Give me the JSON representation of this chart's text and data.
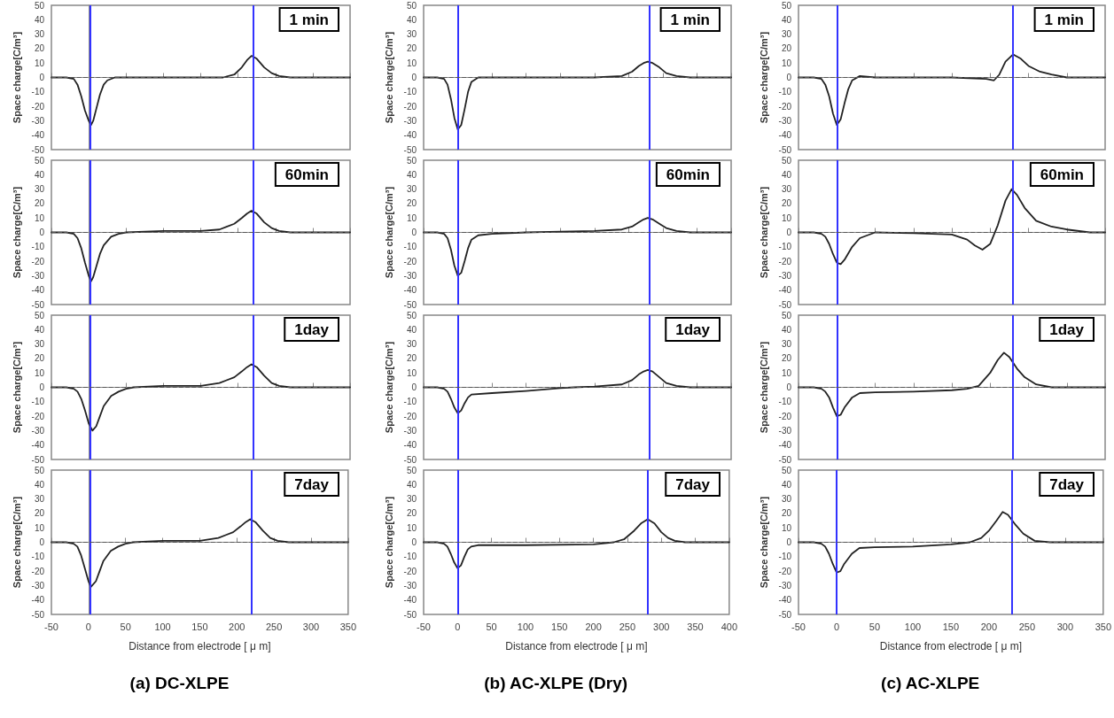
{
  "chart_data": [
    {
      "type": "line",
      "ylabel": "Space charge[C/m³]",
      "annotations": [
        "1 min"
      ],
      "xlim": [
        -50,
        350
      ],
      "xticks": [
        -50,
        0,
        50,
        100,
        150,
        200,
        250,
        300,
        350
      ],
      "ylim": [
        -50,
        50
      ],
      "yticks": [
        -50,
        -40,
        -30,
        -20,
        -10,
        0,
        10,
        20,
        30,
        40,
        50
      ],
      "tick_labels": "y",
      "marker": "none",
      "line_style": "solid",
      "x": [
        -50,
        -30,
        -20,
        -15,
        -10,
        -5,
        0,
        3,
        6,
        10,
        15,
        20,
        25,
        35,
        100,
        180,
        195,
        205,
        212,
        218,
        225,
        235,
        245,
        255,
        270,
        350
      ],
      "series": [
        {
          "color": "#222222",
          "values": [
            0,
            0,
            -1,
            -5,
            -13,
            -23,
            -30,
            -33,
            -30,
            -22,
            -12,
            -5,
            -2,
            0,
            0,
            0,
            2,
            7,
            12,
            15,
            13,
            7,
            3,
            1,
            0,
            0
          ]
        }
      ],
      "ref_lines": [
        {
          "axis": "x",
          "value": 2,
          "color": "#3333ff"
        },
        {
          "axis": "x",
          "value": 220,
          "color": "#3333ff"
        },
        {
          "axis": "y",
          "value": 0,
          "color": "#555555",
          "line_style": "dashed"
        }
      ]
    },
    {
      "type": "line",
      "ylabel": "Space charge[C/m³]",
      "annotations": [
        "1 min"
      ],
      "xlim": [
        -50,
        400
      ],
      "xticks": [
        -50,
        0,
        50,
        100,
        150,
        200,
        250,
        300,
        350,
        400
      ],
      "ylim": [
        -50,
        50
      ],
      "yticks": [
        -50,
        -40,
        -30,
        -20,
        -10,
        0,
        10,
        20,
        30,
        40,
        50
      ],
      "tick_labels": "y",
      "marker": "none",
      "line_style": "solid",
      "x": [
        -50,
        -30,
        -20,
        -15,
        -10,
        -5,
        0,
        5,
        10,
        15,
        20,
        30,
        100,
        200,
        240,
        255,
        265,
        272,
        278,
        285,
        295,
        305,
        320,
        340,
        400
      ],
      "series": [
        {
          "color": "#222222",
          "values": [
            0,
            0,
            -1,
            -5,
            -15,
            -28,
            -36,
            -33,
            -22,
            -10,
            -3,
            0,
            0,
            0,
            1,
            4,
            8,
            10,
            11,
            10,
            7,
            3,
            1,
            0,
            0
          ]
        }
      ],
      "ref_lines": [
        {
          "axis": "x",
          "value": 0,
          "color": "#3333ff"
        },
        {
          "axis": "x",
          "value": 280,
          "color": "#3333ff"
        },
        {
          "axis": "y",
          "value": 0,
          "color": "#555555",
          "line_style": "dashed"
        }
      ]
    },
    {
      "type": "line",
      "ylabel": "Space charge[C/m³]",
      "annotations": [
        "1 min"
      ],
      "xlim": [
        -50,
        350
      ],
      "xticks": [
        -50,
        0,
        50,
        100,
        150,
        200,
        250,
        300,
        350
      ],
      "ylim": [
        -50,
        50
      ],
      "yticks": [
        -50,
        -40,
        -30,
        -20,
        -10,
        0,
        10,
        20,
        30,
        40,
        50
      ],
      "tick_labels": "y",
      "marker": "none",
      "line_style": "solid",
      "x": [
        -50,
        -30,
        -20,
        -15,
        -10,
        -5,
        0,
        5,
        10,
        15,
        20,
        30,
        50,
        100,
        150,
        195,
        205,
        212,
        220,
        230,
        240,
        250,
        265,
        280,
        300,
        350
      ],
      "series": [
        {
          "color": "#222222",
          "values": [
            0,
            0,
            -1,
            -5,
            -13,
            -25,
            -33,
            -29,
            -18,
            -8,
            -2,
            1,
            0,
            0,
            0,
            -1,
            -2,
            2,
            11,
            16,
            13,
            8,
            4,
            2,
            0,
            0
          ]
        }
      ],
      "ref_lines": [
        {
          "axis": "x",
          "value": 0,
          "color": "#3333ff"
        },
        {
          "axis": "x",
          "value": 230,
          "color": "#3333ff"
        },
        {
          "axis": "y",
          "value": 0,
          "color": "#555555",
          "line_style": "dashed"
        }
      ]
    },
    {
      "type": "line",
      "ylabel": "Space charge[C/m³]",
      "annotations": [
        "60min"
      ],
      "xlim": [
        -50,
        350
      ],
      "xticks": [
        -50,
        0,
        50,
        100,
        150,
        200,
        250,
        300,
        350
      ],
      "ylim": [
        -50,
        50
      ],
      "yticks": [
        -50,
        -40,
        -30,
        -20,
        -10,
        0,
        10,
        20,
        30,
        40,
        50
      ],
      "tick_labels": "y",
      "marker": "none",
      "line_style": "solid",
      "x": [
        -50,
        -30,
        -20,
        -15,
        -10,
        -5,
        0,
        3,
        6,
        10,
        15,
        20,
        30,
        40,
        50,
        100,
        150,
        175,
        195,
        205,
        212,
        218,
        225,
        235,
        245,
        255,
        270,
        350
      ],
      "series": [
        {
          "color": "#222222",
          "values": [
            0,
            0,
            -1,
            -4,
            -11,
            -21,
            -30,
            -34,
            -31,
            -24,
            -15,
            -9,
            -3,
            -1,
            0,
            1,
            1,
            2,
            6,
            10,
            13,
            15,
            13,
            7,
            3,
            1,
            0,
            0
          ]
        }
      ],
      "ref_lines": [
        {
          "axis": "x",
          "value": 2,
          "color": "#3333ff"
        },
        {
          "axis": "x",
          "value": 220,
          "color": "#3333ff"
        },
        {
          "axis": "y",
          "value": 0,
          "color": "#555555",
          "line_style": "dashed"
        }
      ]
    },
    {
      "type": "line",
      "ylabel": "Space charge[C/m³]",
      "annotations": [
        "60min"
      ],
      "xlim": [
        -50,
        400
      ],
      "xticks": [
        -50,
        0,
        50,
        100,
        150,
        200,
        250,
        300,
        350,
        400
      ],
      "ylim": [
        -50,
        50
      ],
      "yticks": [
        -50,
        -40,
        -30,
        -20,
        -10,
        0,
        10,
        20,
        30,
        40,
        50
      ],
      "tick_labels": "y",
      "marker": "none",
      "line_style": "solid",
      "x": [
        -50,
        -30,
        -20,
        -15,
        -10,
        -5,
        0,
        5,
        10,
        15,
        20,
        30,
        50,
        100,
        150,
        200,
        240,
        255,
        265,
        272,
        278,
        285,
        295,
        305,
        320,
        340,
        400
      ],
      "series": [
        {
          "color": "#222222",
          "values": [
            0,
            0,
            -1,
            -4,
            -12,
            -23,
            -30,
            -28,
            -20,
            -11,
            -5,
            -2,
            -1,
            0,
            0.5,
            1,
            2,
            4,
            7,
            9,
            10,
            9,
            6,
            3,
            1,
            0,
            0
          ]
        }
      ],
      "ref_lines": [
        {
          "axis": "x",
          "value": 0,
          "color": "#3333ff"
        },
        {
          "axis": "x",
          "value": 280,
          "color": "#3333ff"
        },
        {
          "axis": "y",
          "value": 0,
          "color": "#555555",
          "line_style": "dashed"
        }
      ]
    },
    {
      "type": "line",
      "ylabel": "Space charge[C/m³]",
      "annotations": [
        "60min"
      ],
      "xlim": [
        -50,
        350
      ],
      "xticks": [
        -50,
        0,
        50,
        100,
        150,
        200,
        250,
        300,
        350
      ],
      "ylim": [
        -50,
        50
      ],
      "yticks": [
        -50,
        -40,
        -30,
        -20,
        -10,
        0,
        10,
        20,
        30,
        40,
        50
      ],
      "tick_labels": "y",
      "marker": "none",
      "line_style": "solid",
      "x": [
        -50,
        -30,
        -20,
        -15,
        -10,
        -5,
        0,
        5,
        10,
        20,
        30,
        50,
        100,
        150,
        170,
        180,
        190,
        200,
        210,
        220,
        228,
        235,
        245,
        260,
        280,
        300,
        330,
        350
      ],
      "series": [
        {
          "color": "#222222",
          "values": [
            0,
            0,
            -1,
            -3,
            -8,
            -15,
            -21,
            -22,
            -19,
            -10,
            -4,
            0,
            -0.5,
            -1.5,
            -5,
            -9,
            -12,
            -8,
            5,
            22,
            30,
            26,
            17,
            8,
            4,
            2,
            0,
            0
          ]
        }
      ],
      "ref_lines": [
        {
          "axis": "x",
          "value": 0,
          "color": "#3333ff"
        },
        {
          "axis": "x",
          "value": 230,
          "color": "#3333ff"
        },
        {
          "axis": "y",
          "value": 0,
          "color": "#555555",
          "line_style": "dashed"
        }
      ]
    },
    {
      "type": "line",
      "ylabel": "Space charge[C/m³]",
      "annotations": [
        "1day"
      ],
      "xlim": [
        -50,
        350
      ],
      "xticks": [
        -50,
        0,
        50,
        100,
        150,
        200,
        250,
        300,
        350
      ],
      "ylim": [
        -50,
        50
      ],
      "yticks": [
        -50,
        -40,
        -30,
        -20,
        -10,
        0,
        10,
        20,
        30,
        40,
        50
      ],
      "tick_labels": "y",
      "marker": "none",
      "line_style": "solid",
      "x": [
        -50,
        -30,
        -20,
        -15,
        -10,
        -5,
        0,
        5,
        10,
        15,
        20,
        30,
        40,
        50,
        60,
        100,
        150,
        175,
        195,
        205,
        212,
        218,
        225,
        235,
        245,
        255,
        270,
        350
      ],
      "series": [
        {
          "color": "#222222",
          "values": [
            0,
            0,
            -1,
            -3,
            -8,
            -16,
            -25,
            -30,
            -27,
            -20,
            -13,
            -6,
            -3,
            -1,
            0,
            1,
            1,
            3,
            7,
            11,
            14,
            16,
            14,
            8,
            3,
            1,
            0,
            0
          ]
        }
      ],
      "ref_lines": [
        {
          "axis": "x",
          "value": 2,
          "color": "#3333ff"
        },
        {
          "axis": "x",
          "value": 220,
          "color": "#3333ff"
        },
        {
          "axis": "y",
          "value": 0,
          "color": "#555555",
          "line_style": "dashed"
        }
      ]
    },
    {
      "type": "line",
      "ylabel": "Space charge[C/m³]",
      "annotations": [
        "1day"
      ],
      "xlim": [
        -50,
        400
      ],
      "xticks": [
        -50,
        0,
        50,
        100,
        150,
        200,
        250,
        300,
        350,
        400
      ],
      "ylim": [
        -50,
        50
      ],
      "yticks": [
        -50,
        -40,
        -30,
        -20,
        -10,
        0,
        10,
        20,
        30,
        40,
        50
      ],
      "tick_labels": "y",
      "marker": "none",
      "line_style": "solid",
      "x": [
        -50,
        -30,
        -20,
        -15,
        -10,
        -5,
        0,
        5,
        10,
        15,
        20,
        50,
        100,
        150,
        170,
        200,
        240,
        255,
        265,
        272,
        278,
        285,
        295,
        305,
        320,
        340,
        400
      ],
      "series": [
        {
          "color": "#222222",
          "values": [
            0,
            0,
            -1,
            -3,
            -8,
            -14,
            -18,
            -16,
            -11,
            -7,
            -5,
            -4,
            -2.5,
            -0.5,
            0,
            0.5,
            2,
            5,
            9,
            11,
            12,
            11,
            7,
            3,
            1,
            0,
            0
          ]
        }
      ],
      "ref_lines": [
        {
          "axis": "x",
          "value": 0,
          "color": "#3333ff"
        },
        {
          "axis": "x",
          "value": 280,
          "color": "#3333ff"
        },
        {
          "axis": "y",
          "value": 0,
          "color": "#555555",
          "line_style": "dashed"
        }
      ]
    },
    {
      "type": "line",
      "ylabel": "Space charge[C/m³]",
      "annotations": [
        "1day"
      ],
      "xlim": [
        -50,
        350
      ],
      "xticks": [
        -50,
        0,
        50,
        100,
        150,
        200,
        250,
        300,
        350
      ],
      "ylim": [
        -50,
        50
      ],
      "yticks": [
        -50,
        -40,
        -30,
        -20,
        -10,
        0,
        10,
        20,
        30,
        40,
        50
      ],
      "tick_labels": "y",
      "marker": "none",
      "line_style": "solid",
      "x": [
        -50,
        -30,
        -20,
        -15,
        -10,
        -5,
        0,
        5,
        10,
        20,
        30,
        50,
        100,
        150,
        170,
        185,
        200,
        210,
        218,
        225,
        235,
        245,
        260,
        280,
        350
      ],
      "series": [
        {
          "color": "#222222",
          "values": [
            0,
            0,
            -1,
            -3,
            -7,
            -14,
            -20,
            -19,
            -14,
            -7,
            -4,
            -3.5,
            -3,
            -2,
            -1,
            1,
            10,
            19,
            24,
            21,
            13,
            7,
            2,
            0,
            0
          ]
        }
      ],
      "ref_lines": [
        {
          "axis": "x",
          "value": 0,
          "color": "#3333ff"
        },
        {
          "axis": "x",
          "value": 230,
          "color": "#3333ff"
        },
        {
          "axis": "y",
          "value": 0,
          "color": "#555555",
          "line_style": "dashed"
        }
      ]
    },
    {
      "type": "line",
      "ylabel": "Space charge[C/m³]",
      "xlabel": "Distance from electrode [ μ m]",
      "annotations": [
        "7day",
        "(a) DC-XLPE"
      ],
      "xlim": [
        -50,
        350
      ],
      "xticks": [
        -50,
        0,
        50,
        100,
        150,
        200,
        250,
        300,
        350
      ],
      "ylim": [
        -50,
        50
      ],
      "yticks": [
        -50,
        -40,
        -30,
        -20,
        -10,
        0,
        10,
        20,
        30,
        40,
        50
      ],
      "marker": "none",
      "line_style": "solid",
      "x": [
        -50,
        -30,
        -20,
        -15,
        -10,
        -5,
        0,
        3,
        10,
        15,
        20,
        30,
        40,
        50,
        60,
        100,
        150,
        175,
        195,
        205,
        212,
        218,
        225,
        235,
        245,
        255,
        270,
        350
      ],
      "series": [
        {
          "color": "#222222",
          "values": [
            0,
            0,
            -1,
            -3,
            -9,
            -18,
            -27,
            -31,
            -27,
            -20,
            -13,
            -6,
            -3,
            -1,
            0,
            1,
            1,
            3,
            7,
            11,
            14,
            16,
            14,
            8,
            3,
            1,
            0,
            0
          ]
        }
      ],
      "ref_lines": [
        {
          "axis": "x",
          "value": 2,
          "color": "#3333ff"
        },
        {
          "axis": "x",
          "value": 220,
          "color": "#3333ff"
        },
        {
          "axis": "y",
          "value": 0,
          "color": "#555555",
          "line_style": "dashed"
        }
      ]
    },
    {
      "type": "line",
      "ylabel": "Space charge[C/m³]",
      "xlabel": "Distance from electrode [ μ m]",
      "annotations": [
        "7day",
        "(b) AC-XLPE (Dry)"
      ],
      "xlim": [
        -50,
        400
      ],
      "xticks": [
        -50,
        0,
        50,
        100,
        150,
        200,
        250,
        300,
        350,
        400
      ],
      "ylim": [
        -50,
        50
      ],
      "yticks": [
        -50,
        -40,
        -30,
        -20,
        -10,
        0,
        10,
        20,
        30,
        40,
        50
      ],
      "marker": "none",
      "line_style": "solid",
      "x": [
        -50,
        -30,
        -20,
        -15,
        -10,
        -5,
        0,
        5,
        10,
        15,
        20,
        30,
        100,
        200,
        230,
        245,
        260,
        270,
        280,
        290,
        300,
        310,
        320,
        335,
        400
      ],
      "series": [
        {
          "color": "#222222",
          "values": [
            0,
            0,
            -1,
            -3,
            -8,
            -14,
            -18,
            -16,
            -10,
            -5,
            -3,
            -2,
            -2,
            -1.5,
            0,
            2,
            8,
            13,
            16,
            13,
            7,
            3,
            1,
            0,
            0
          ]
        }
      ],
      "ref_lines": [
        {
          "axis": "x",
          "value": 0,
          "color": "#3333ff"
        },
        {
          "axis": "x",
          "value": 280,
          "color": "#3333ff"
        },
        {
          "axis": "y",
          "value": 0,
          "color": "#555555",
          "line_style": "dashed"
        }
      ]
    },
    {
      "type": "line",
      "ylabel": "Space charge[C/m³]",
      "xlabel": "Distance from electrode [ μ m]",
      "annotations": [
        "7day",
        "(c) AC-XLPE"
      ],
      "xlim": [
        -50,
        350
      ],
      "xticks": [
        -50,
        0,
        50,
        100,
        150,
        200,
        250,
        300,
        350
      ],
      "ylim": [
        -50,
        50
      ],
      "yticks": [
        -50,
        -40,
        -30,
        -20,
        -10,
        0,
        10,
        20,
        30,
        40,
        50
      ],
      "marker": "none",
      "line_style": "solid",
      "x": [
        -50,
        -30,
        -20,
        -15,
        -10,
        -5,
        0,
        5,
        10,
        20,
        30,
        50,
        100,
        150,
        175,
        190,
        200,
        210,
        218,
        225,
        235,
        245,
        260,
        280,
        350
      ],
      "series": [
        {
          "color": "#222222",
          "values": [
            0,
            0,
            -1,
            -3,
            -8,
            -15,
            -21,
            -20,
            -15,
            -8,
            -4,
            -3.5,
            -3,
            -1.5,
            0,
            3,
            8,
            15,
            21,
            19,
            12,
            6,
            1,
            0,
            0
          ]
        }
      ],
      "ref_lines": [
        {
          "axis": "x",
          "value": 0,
          "color": "#3333ff"
        },
        {
          "axis": "x",
          "value": 230,
          "color": "#3333ff"
        },
        {
          "axis": "y",
          "value": 0,
          "color": "#555555",
          "line_style": "dashed"
        }
      ]
    }
  ]
}
